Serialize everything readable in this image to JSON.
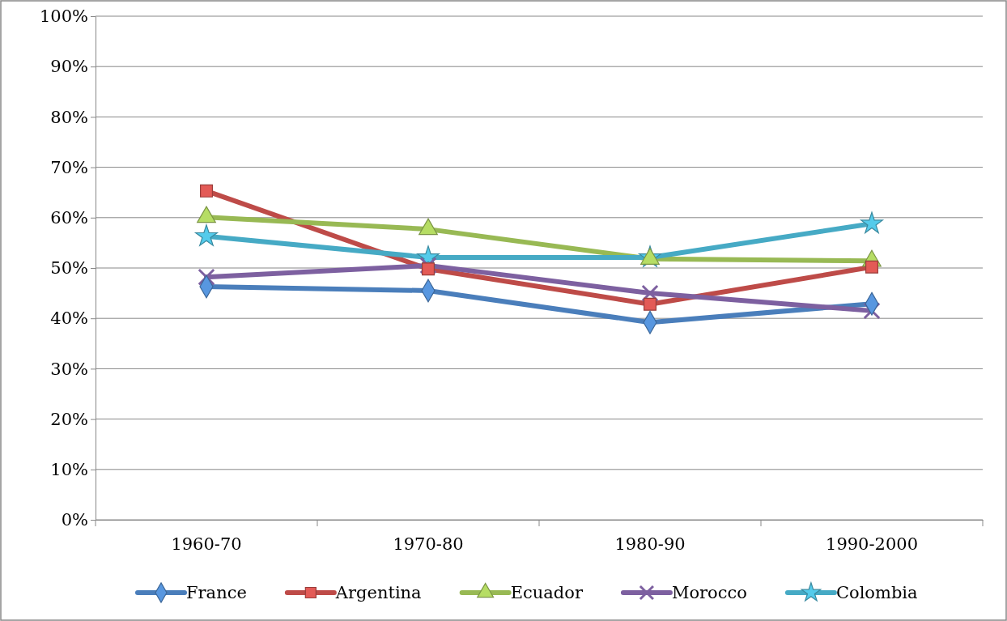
{
  "chart_data": {
    "type": "line",
    "categories": [
      "1960-70",
      "1970-80",
      "1980-90",
      "1990-2000"
    ],
    "series": [
      {
        "name": "France",
        "color": "#4a7ebb",
        "marker": "diamond",
        "values": [
          46.3,
          45.5,
          39.2,
          42.9
        ]
      },
      {
        "name": "Argentina",
        "color": "#be4b48",
        "marker": "square",
        "values": [
          65.3,
          49.8,
          42.8,
          50.2
        ]
      },
      {
        "name": "Ecuador",
        "color": "#98b954",
        "marker": "triangle",
        "values": [
          60.1,
          57.7,
          51.8,
          51.4
        ]
      },
      {
        "name": "Morocco",
        "color": "#7d60a0",
        "marker": "cross",
        "values": [
          48.2,
          50.5,
          45.0,
          41.5
        ]
      },
      {
        "name": "Colombia",
        "color": "#46aac5",
        "marker": "star",
        "values": [
          56.3,
          52.1,
          52.1,
          58.8
        ]
      }
    ],
    "ylim": [
      0,
      100
    ],
    "yticks": [
      {
        "value": 0,
        "label": "0%"
      },
      {
        "value": 10,
        "label": "10%"
      },
      {
        "value": 20,
        "label": "20%"
      },
      {
        "value": 30,
        "label": "30%"
      },
      {
        "value": 40,
        "label": "40%"
      },
      {
        "value": 50,
        "label": "50%"
      },
      {
        "value": 60,
        "label": "60%"
      },
      {
        "value": 70,
        "label": "70%"
      },
      {
        "value": 80,
        "label": "80%"
      },
      {
        "value": 90,
        "label": "90%"
      },
      {
        "value": 100,
        "label": "100%"
      }
    ],
    "grid": "y",
    "legend": "bottom",
    "line_style": "solid"
  }
}
